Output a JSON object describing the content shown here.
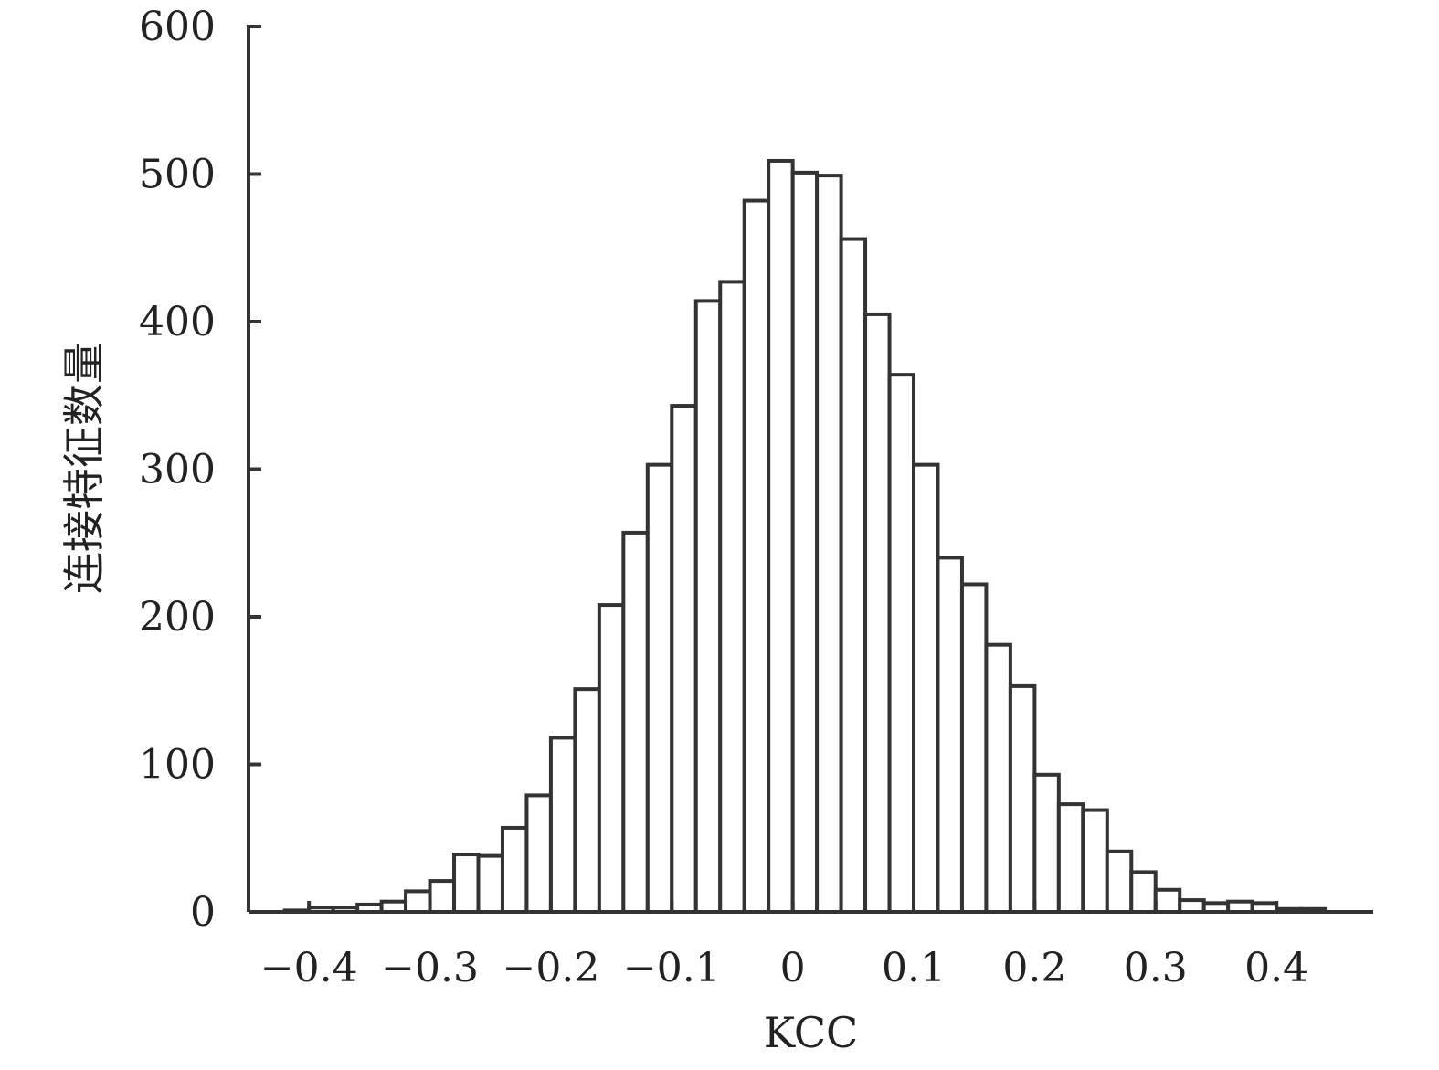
{
  "chart_data": {
    "type": "bar",
    "title": "",
    "xlabel": "KCC",
    "ylabel": "连接特征数量",
    "xlim": [
      -0.45,
      0.48
    ],
    "ylim": [
      0,
      600
    ],
    "x_ticks": [
      "−0.4",
      "−0.3",
      "−0.2",
      "−0.1",
      "0",
      "0.1",
      "0.2",
      "0.3",
      "0.4"
    ],
    "x_tick_values": [
      -0.4,
      -0.3,
      -0.2,
      -0.1,
      0,
      0.1,
      0.2,
      0.3,
      0.4
    ],
    "y_ticks": [
      "0",
      "100",
      "200",
      "300",
      "400",
      "500",
      "600"
    ],
    "y_tick_values": [
      0,
      100,
      200,
      300,
      400,
      500,
      600
    ],
    "bin_width": 0.02,
    "bin_centers": [
      -0.41,
      -0.39,
      -0.37,
      -0.35,
      -0.33,
      -0.31,
      -0.29,
      -0.27,
      -0.25,
      -0.23,
      -0.21,
      -0.19,
      -0.17,
      -0.15,
      -0.13,
      -0.11,
      -0.09,
      -0.07,
      -0.05,
      -0.03,
      -0.01,
      0.01,
      0.03,
      0.05,
      0.07,
      0.09,
      0.11,
      0.13,
      0.15,
      0.17,
      0.19,
      0.21,
      0.23,
      0.25,
      0.27,
      0.29,
      0.31,
      0.33,
      0.35,
      0.37,
      0.39,
      0.41,
      0.43
    ],
    "values": [
      1,
      3,
      3,
      5,
      7,
      14,
      21,
      39,
      38,
      57,
      79,
      118,
      151,
      208,
      257,
      303,
      343,
      414,
      427,
      482,
      509,
      501,
      499,
      456,
      405,
      364,
      303,
      240,
      222,
      181,
      153,
      93,
      73,
      69,
      41,
      27,
      15,
      8,
      6,
      7,
      6,
      2,
      2
    ],
    "grid": false,
    "legend": "none"
  }
}
